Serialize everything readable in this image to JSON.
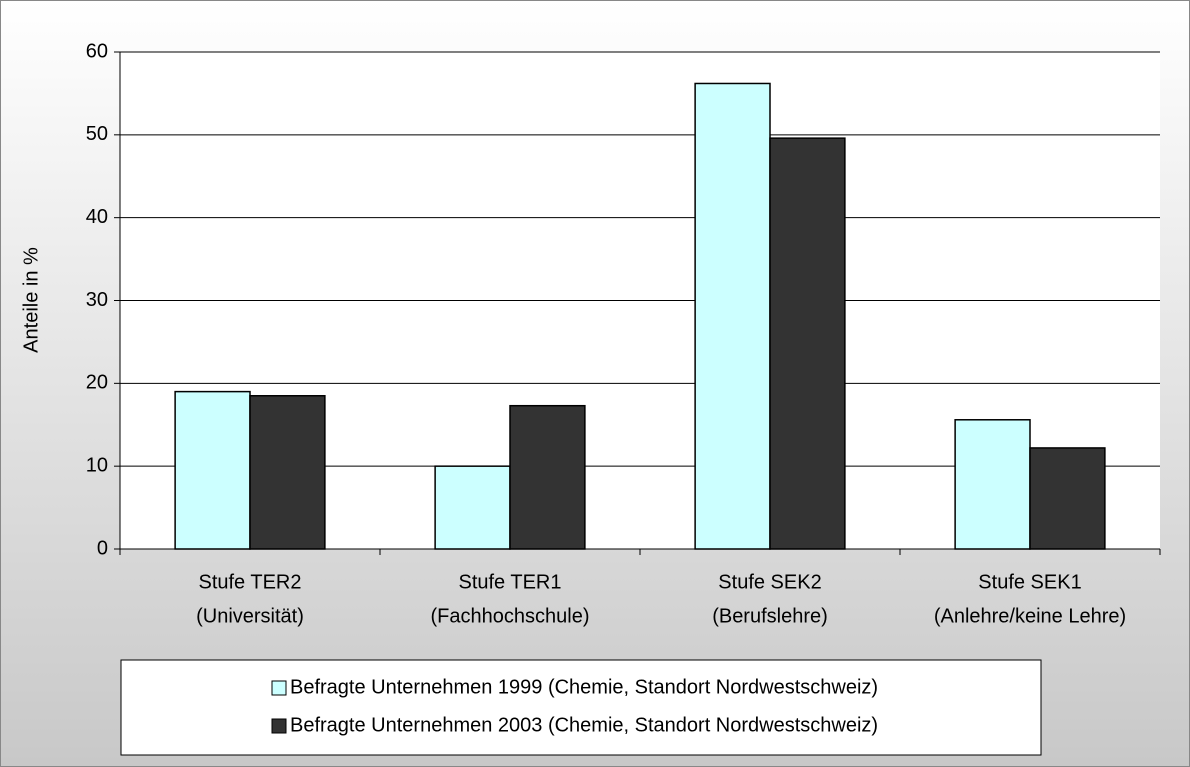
{
  "chart_data": {
    "type": "bar",
    "y_label": "Anteile in %",
    "categories": [
      [
        "Stufe TER2",
        "(Universität)"
      ],
      [
        "Stufe TER1",
        "(Fachhochschule)"
      ],
      [
        "Stufe SEK2",
        "(Berufslehre)"
      ],
      [
        "Stufe SEK1",
        "(Anlehre/keine Lehre)"
      ]
    ],
    "series": [
      {
        "name": "Befragte Unternehmen 1999 (Chemie, Standort Nordwestschweiz)",
        "color": "#ccffff",
        "values": [
          19,
          10,
          56.2,
          15.6
        ]
      },
      {
        "name": "Befragte Unternehmen 2003 (Chemie, Standort Nordwestschweiz)",
        "color": "#333333",
        "values": [
          18.5,
          17.3,
          49.6,
          12.2
        ]
      }
    ],
    "ylim": [
      0,
      60
    ],
    "yticks": [
      0,
      10,
      20,
      30,
      40,
      50,
      60
    ],
    "grid": true
  }
}
